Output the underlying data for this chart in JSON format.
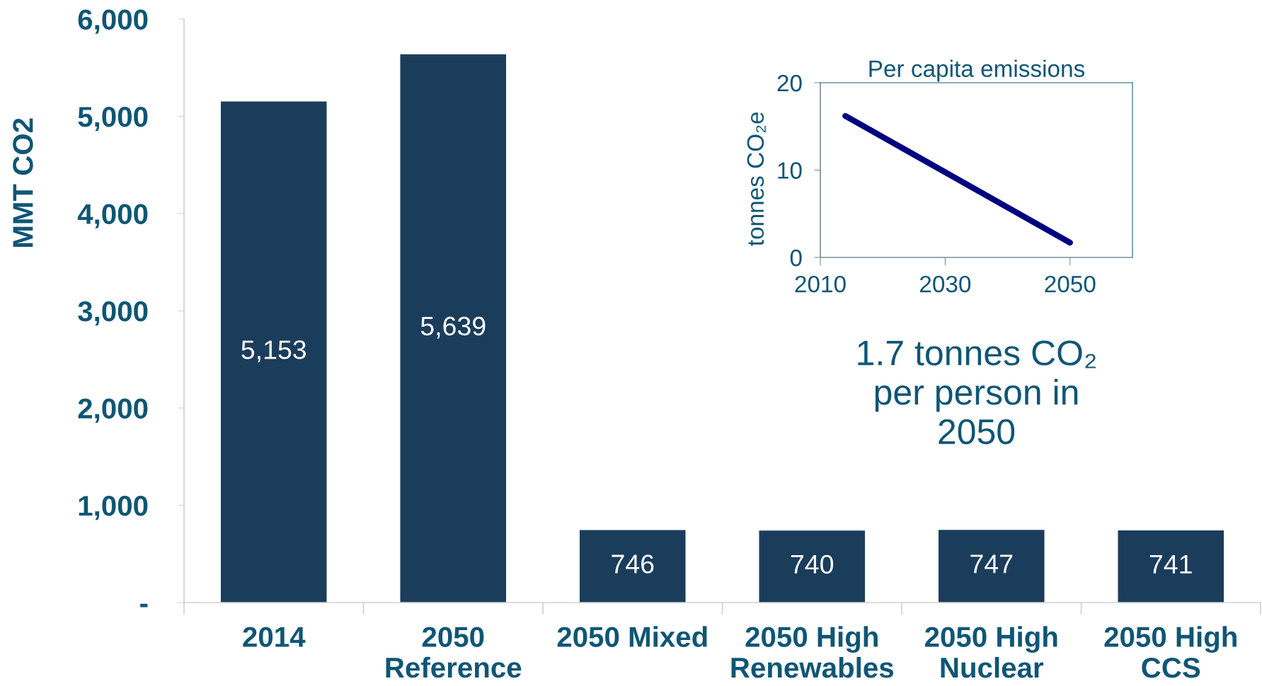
{
  "chart_data": [
    {
      "type": "bar",
      "categories": [
        "2014",
        "2050\nReference",
        "2050 Mixed",
        "2050 High\nRenewables",
        "2050 High\nNuclear",
        "2050 High\nCCS"
      ],
      "values": [
        5153,
        5639,
        746,
        740,
        747,
        741
      ],
      "color": "#1b3d5c",
      "value_labels": [
        "5,153",
        "5,639",
        "746",
        "740",
        "747",
        "741"
      ],
      "ylabel": "MMT CO2",
      "ylim": [
        0,
        6000
      ],
      "yticks": [
        {
          "value": 0,
          "label": "-"
        },
        {
          "value": 1000,
          "label": "1,000"
        },
        {
          "value": 2000,
          "label": "2,000"
        },
        {
          "value": 3000,
          "label": "3,000"
        },
        {
          "value": 4000,
          "label": "4,000"
        },
        {
          "value": 5000,
          "label": "5,000"
        },
        {
          "value": 6000,
          "label": "6,000"
        }
      ]
    },
    {
      "type": "line",
      "title": "Per capita emissions",
      "ylabel": "tonnes CO₂e",
      "x": [
        2014,
        2050
      ],
      "values": [
        16.2,
        1.7
      ],
      "color": "#000080",
      "xlim": [
        2010,
        2060
      ],
      "xticks": [
        2010,
        2030,
        2050
      ],
      "ylim": [
        0,
        20
      ],
      "yticks": [
        0,
        10,
        20
      ],
      "annotations": [
        "1.7 tonnes CO₂\nper person in\n2050"
      ]
    }
  ]
}
